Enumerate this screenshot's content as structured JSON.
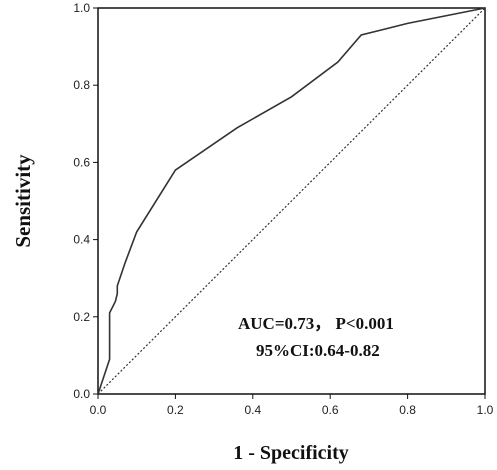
{
  "chart_data": {
    "type": "line",
    "title": "",
    "xlabel": "1 - Specificity",
    "ylabel": "Sensitivity",
    "xlim": [
      0.0,
      1.0
    ],
    "ylim": [
      0.0,
      1.0
    ],
    "x_ticks": [
      "0.0",
      "0.2",
      "0.4",
      "0.6",
      "0.8",
      "1.0"
    ],
    "y_ticks": [
      "0.0",
      "0.2",
      "0.4",
      "0.6",
      "0.8",
      "1.0"
    ],
    "grid": false,
    "series": [
      {
        "style": "solid",
        "color": "#333333",
        "points": [
          [
            0.0,
            0.0
          ],
          [
            0.03,
            0.09
          ],
          [
            0.03,
            0.21
          ],
          [
            0.045,
            0.24
          ],
          [
            0.05,
            0.26
          ],
          [
            0.05,
            0.28
          ],
          [
            0.07,
            0.34
          ],
          [
            0.1,
            0.42
          ],
          [
            0.2,
            0.58
          ],
          [
            0.36,
            0.69
          ],
          [
            0.5,
            0.77
          ],
          [
            0.62,
            0.86
          ],
          [
            0.68,
            0.93
          ],
          [
            0.8,
            0.96
          ],
          [
            1.0,
            1.0
          ]
        ]
      },
      {
        "style": "dotted",
        "color": "#333333",
        "points": [
          [
            0.0,
            0.0
          ],
          [
            1.0,
            1.0
          ]
        ]
      }
    ],
    "annotations": [
      "AUC=0.73， P<0.001",
      "95%CI:0.64-0.82"
    ]
  }
}
